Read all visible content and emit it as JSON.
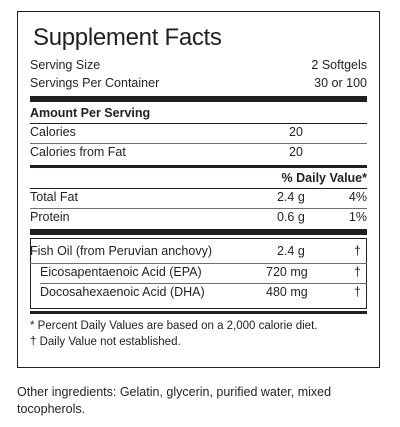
{
  "panel": {
    "title": "Supplement Facts",
    "serving_size_label": "Serving Size",
    "serving_size_value": "2 Softgels",
    "servings_label": "Servings Per Container",
    "servings_value": "30 or 100",
    "amount_header": "Amount Per Serving",
    "calories_label": "Calories",
    "calories_value": "20",
    "calories_fat_label": "Calories from Fat",
    "calories_fat_value": "20",
    "dv_header": "% Daily Value*",
    "rows": [
      {
        "name": "Total Fat",
        "amount": "2.4 g",
        "dv": "4%"
      },
      {
        "name": "Protein",
        "amount": "0.6 g",
        "dv": "1%"
      }
    ],
    "fish": {
      "name": "Fish Oil (from Peruvian anchovy)",
      "amount": "2.4 g",
      "dv": "†",
      "sub": [
        {
          "name": "Eicosapentaenoic Acid (EPA)",
          "amount": "720 mg",
          "dv": "†"
        },
        {
          "name": "Docosahexaenoic Acid (DHA)",
          "amount": "480 mg",
          "dv": "†"
        }
      ]
    },
    "footnote1": "* Percent Daily Values are based on a 2,000 calorie diet.",
    "footnote2": "† Daily Value not established."
  },
  "other_ingredients": "Other ingredients: Gelatin, glycerin, purified water, mixed tocopherols."
}
